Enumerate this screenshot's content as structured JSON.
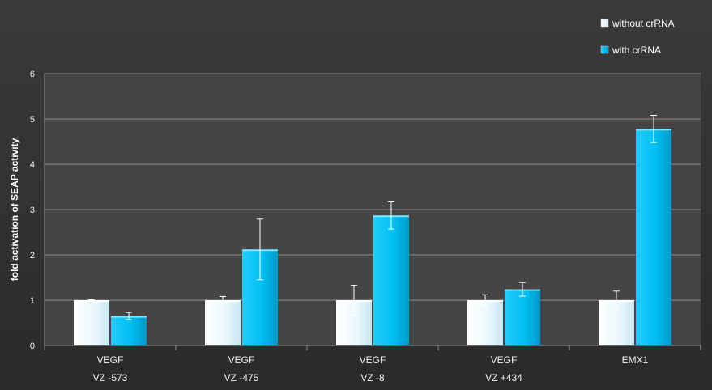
{
  "chart_data": {
    "type": "bar",
    "title": "",
    "xlabel": "",
    "ylabel": "fold activation of SEAP activity",
    "ylim": [
      0,
      6
    ],
    "yticks": [
      0,
      1,
      2,
      3,
      4,
      5,
      6
    ],
    "grid": true,
    "legend_position": "top-right",
    "categories": [
      [
        "VEGF",
        "VZ -573"
      ],
      [
        "VEGF",
        "VZ -475"
      ],
      [
        "VEGF",
        "VZ -8"
      ],
      [
        "VEGF",
        "VZ +434"
      ],
      [
        "EMX1",
        ""
      ]
    ],
    "series": [
      {
        "name": "without crRNA",
        "color": "#e8f6fc",
        "values": [
          1.0,
          1.0,
          1.0,
          1.0,
          1.0
        ],
        "errors": [
          0.01,
          0.08,
          0.33,
          0.12,
          0.2
        ]
      },
      {
        "name": "with crRNA",
        "color": "#00bff3",
        "values": [
          0.65,
          2.12,
          2.87,
          1.24,
          4.78
        ],
        "errors": [
          0.08,
          0.67,
          0.3,
          0.15,
          0.3
        ]
      }
    ]
  }
}
